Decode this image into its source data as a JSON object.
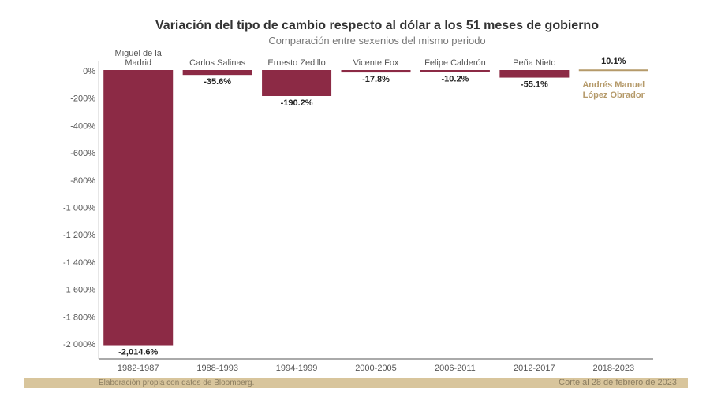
{
  "chart_data": {
    "type": "bar",
    "title": "Variación del tipo de cambio respecto al dólar a los 51 meses de gobierno",
    "subtitle": "Comparación entre sexenios del mismo periodo",
    "categories": [
      "1982-1987",
      "1988-1993",
      "1994-1999",
      "2000-2005",
      "2006-2011",
      "2012-2017",
      "2018-2023"
    ],
    "presidents": [
      "Miguel de la Madrid",
      "Carlos Salinas",
      "Ernesto Zedillo",
      "Vicente Fox",
      "Felipe Calderón",
      "Peña Nieto",
      "Andrés Manuel López Obrador"
    ],
    "values": [
      -2014.6,
      -35.6,
      -190.2,
      -17.8,
      -10.2,
      -55.1,
      10.1
    ],
    "value_labels": [
      "-2,014.6%",
      "-35.6%",
      "-190.2%",
      "-17.8%",
      "-10.2%",
      "-55.1%",
      "10.1%"
    ],
    "yticks": [
      0,
      -200,
      -400,
      -600,
      -800,
      -1000,
      -1200,
      -1400,
      -1600,
      -1800,
      -2000
    ],
    "ytick_labels": [
      "0%",
      "-200%",
      "-400%",
      "-600%",
      "-800%",
      "-1 000%",
      "-1 200%",
      "-1 400%",
      "-1 600%",
      "-1 800%",
      "-2 000%"
    ],
    "ylim": [
      -2100,
      0
    ],
    "grid": false,
    "colors": {
      "bar": "#8c2a45",
      "highlight": "#b59a6a"
    }
  },
  "footer": {
    "source": "Elaboración propia con datos de Bloomberg.",
    "cutoff": "Corte al 28 de febrero de 2023"
  }
}
